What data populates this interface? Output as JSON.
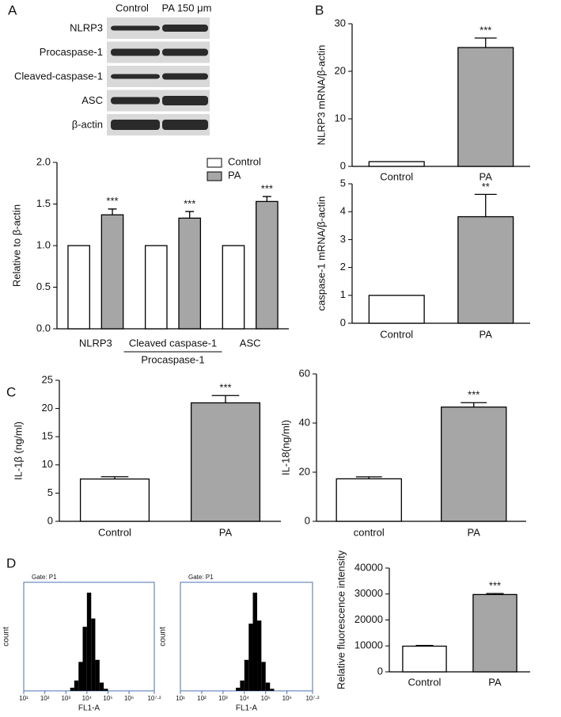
{
  "panel_labels": [
    "A",
    "B",
    "C",
    "D"
  ],
  "blot": {
    "columns": [
      "Control",
      "PA 150 μm"
    ],
    "rows": [
      "NLRP3",
      "Procaspase-1",
      "Cleaved-caspase-1",
      "ASC",
      "β-actin"
    ]
  },
  "chart_data": [
    {
      "type": "bar",
      "ylabel": "Relative to β-actin",
      "categories": [
        "NLRP3",
        "Cleaved caspase-1",
        "ASC"
      ],
      "x_label_denominators": [
        null,
        "Procaspase-1",
        null
      ],
      "series": [
        {
          "name": "Control",
          "color": "#ffffff",
          "values": [
            1,
            1,
            1
          ]
        },
        {
          "name": "PA",
          "color": "#a6a6a6",
          "values": [
            1.37,
            1.33,
            1.53
          ],
          "errors": [
            0.07,
            0.08,
            0.06
          ],
          "annotations": [
            "***",
            "***",
            "***"
          ]
        }
      ],
      "ylim": [
        0,
        2
      ],
      "yticks": [
        {
          "value": 0,
          "label": "0.0"
        },
        {
          "value": 0.5,
          "label": "0.5"
        },
        {
          "value": 1,
          "label": "1.0"
        },
        {
          "value": 1.5,
          "label": "1.5"
        },
        {
          "value": 2,
          "label": "2.0"
        }
      ],
      "legend": "upper right"
    },
    {
      "type": "bar",
      "ylabel": "NLRP3 mRNA/β-actin",
      "categories": [
        "Control",
        "PA"
      ],
      "values": [
        1,
        25
      ],
      "errors": [
        0,
        2
      ],
      "annotations": [
        null,
        "***"
      ],
      "colors": [
        "#ffffff",
        "#a6a6a6"
      ],
      "ylim": [
        0,
        30
      ],
      "yticks": [
        0,
        10,
        20,
        30
      ]
    },
    {
      "type": "bar",
      "ylabel": "caspase-1 mRNA/β-actin",
      "categories": [
        "Control",
        "PA"
      ],
      "values": [
        1,
        3.82
      ],
      "errors": [
        0,
        0.8
      ],
      "annotations": [
        null,
        "**"
      ],
      "colors": [
        "#ffffff",
        "#a6a6a6"
      ],
      "ylim": [
        0,
        5
      ],
      "yticks": [
        0,
        1,
        2,
        3,
        4,
        5
      ]
    },
    {
      "type": "bar",
      "ylabel": "IL-1β (ng/ml)",
      "categories": [
        "Control",
        "PA"
      ],
      "values": [
        7.5,
        21
      ],
      "errors": [
        0.4,
        1.3
      ],
      "annotations": [
        null,
        "***"
      ],
      "colors": [
        "#ffffff",
        "#a6a6a6"
      ],
      "ylim": [
        0,
        25
      ],
      "yticks": [
        0,
        5,
        10,
        15,
        20,
        25
      ]
    },
    {
      "type": "bar",
      "ylabel": "IL-18(ng/ml)",
      "categories": [
        "control",
        "PA"
      ],
      "values": [
        17.3,
        46.5
      ],
      "errors": [
        0.8,
        1.8
      ],
      "annotations": [
        null,
        "***"
      ],
      "colors": [
        "#ffffff",
        "#a6a6a6"
      ],
      "ylim": [
        0,
        60
      ],
      "yticks": [
        0,
        20,
        40,
        60
      ]
    },
    {
      "type": "histogram",
      "gate": "Gate: P1",
      "ylabel": "count",
      "xlabel": "FL1-A",
      "xlog": true,
      "color": "#000000",
      "bins": [
        1600,
        2500,
        4000,
        6300,
        10000,
        16000,
        25000,
        40000,
        63000,
        100000
      ],
      "counts": [
        3,
        10,
        28,
        62,
        95,
        70,
        30,
        8,
        2
      ],
      "xlim": [
        10,
        15848932
      ],
      "ylim": [
        0,
        105
      ],
      "xticks": [
        {
          "value": 10,
          "label": "10¹"
        },
        {
          "value": 100,
          "label": "10²"
        },
        {
          "value": 1000,
          "label": "10³"
        },
        {
          "value": 10000,
          "label": "10⁴"
        },
        {
          "value": 100000,
          "label": "10⁵"
        },
        {
          "value": 1000000,
          "label": "10⁶"
        },
        {
          "value": 15848932,
          "label": "10⁷·²"
        }
      ]
    },
    {
      "type": "histogram",
      "gate": "Gate: P1",
      "ylabel": "count",
      "xlabel": "FL1-A",
      "xlog": true,
      "color": "#000000",
      "bins": [
        4000,
        6300,
        10000,
        16000,
        25000,
        40000,
        63000,
        100000,
        160000,
        250000
      ],
      "counts": [
        3,
        10,
        30,
        65,
        95,
        68,
        28,
        8,
        2
      ],
      "xlim": [
        10,
        15848932
      ],
      "ylim": [
        0,
        105
      ],
      "xticks": [
        {
          "value": 10,
          "label": "10¹"
        },
        {
          "value": 100,
          "label": "10²"
        },
        {
          "value": 1000,
          "label": "10³"
        },
        {
          "value": 10000,
          "label": "10⁴"
        },
        {
          "value": 100000,
          "label": "10⁵"
        },
        {
          "value": 1000000,
          "label": "10⁶"
        },
        {
          "value": 15848932,
          "label": "10⁷·²"
        }
      ]
    },
    {
      "type": "bar",
      "ylabel": "Relative fluorescence intensity",
      "categories": [
        "Control",
        "PA"
      ],
      "values": [
        9900,
        29800
      ],
      "errors": [
        300,
        400
      ],
      "annotations": [
        null,
        "***"
      ],
      "colors": [
        "#ffffff",
        "#a6a6a6"
      ],
      "ylim": [
        0,
        40000
      ],
      "yticks": [
        0,
        10000,
        20000,
        30000,
        40000
      ]
    }
  ]
}
